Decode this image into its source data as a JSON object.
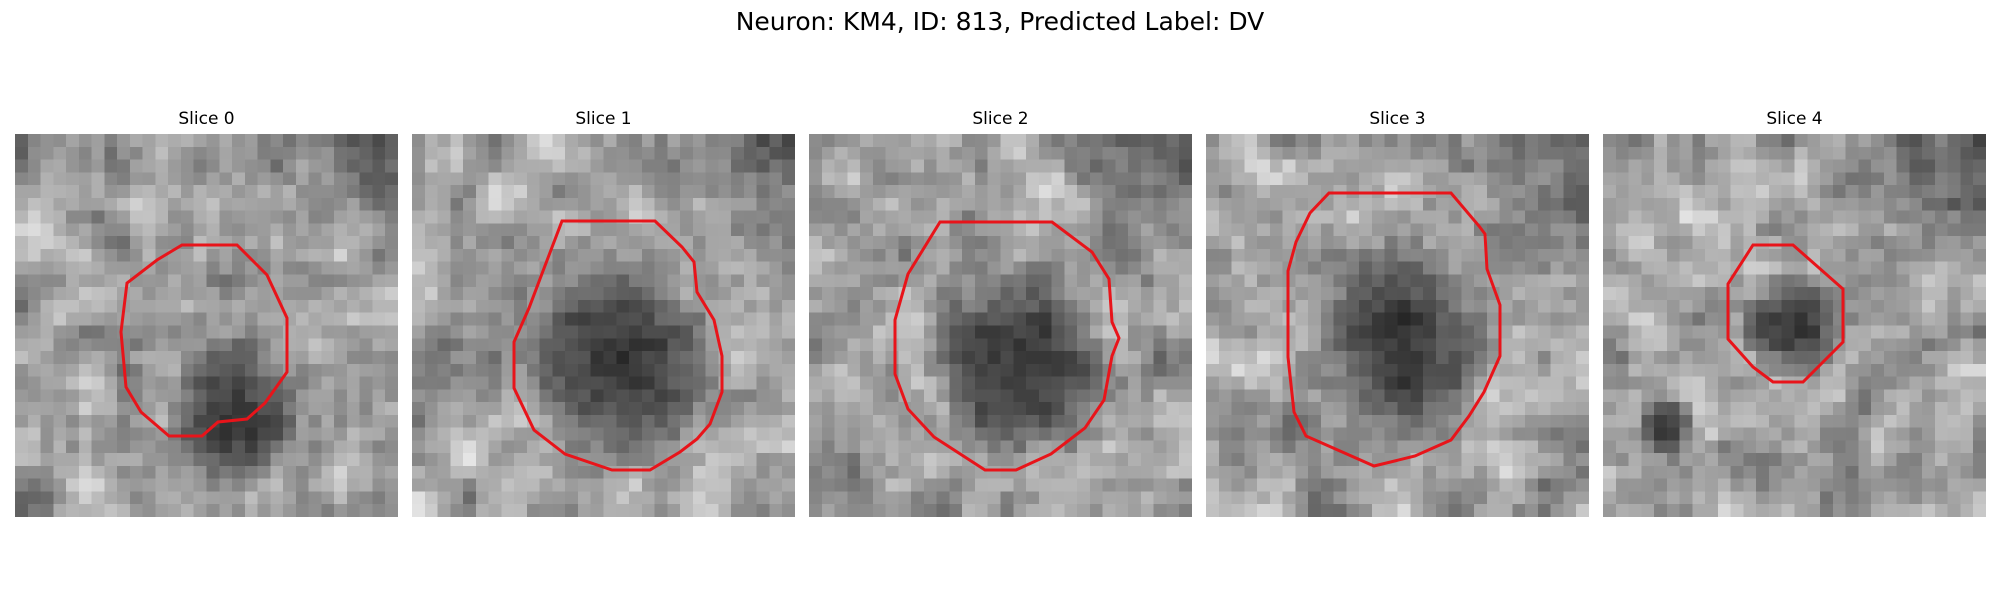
{
  "figure": {
    "title": "Neuron: KM4, ID: 813, Predicted Label: DV"
  },
  "colors": {
    "contour": "#e8141a",
    "background": "#ffffff"
  },
  "panels": [
    {
      "title": "Slice 0"
    },
    {
      "title": "Slice 1"
    },
    {
      "title": "Slice 2"
    },
    {
      "title": "Slice 3"
    },
    {
      "title": "Slice 4"
    }
  ]
}
